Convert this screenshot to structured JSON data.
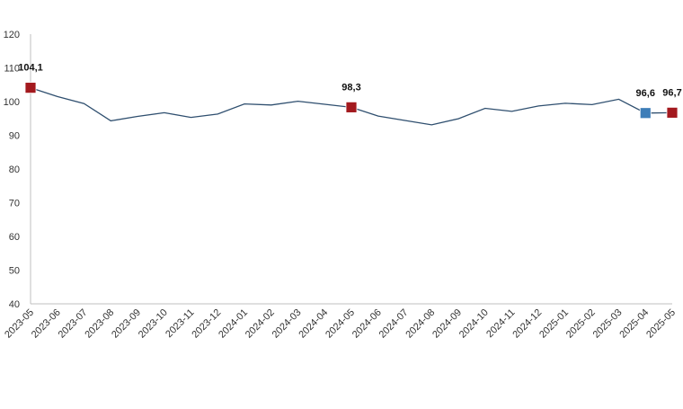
{
  "chart_data": {
    "type": "line",
    "title": "",
    "xlabel": "",
    "ylabel": "",
    "ylim": [
      40,
      120
    ],
    "yticks": [
      40,
      50,
      60,
      70,
      80,
      90,
      100,
      110,
      120
    ],
    "grid": false,
    "legend": "none",
    "categories": [
      "2023-05",
      "2023-06",
      "2023-07",
      "2023-08",
      "2023-09",
      "2023-10",
      "2023-11",
      "2023-12",
      "2024-01",
      "2024-02",
      "2024-03",
      "2024-04",
      "2024-05",
      "2024-06",
      "2024-07",
      "2024-08",
      "2024-09",
      "2024-10",
      "2024-11",
      "2024-12",
      "2025-01",
      "2025-02",
      "2025-03",
      "2025-04",
      "2025-05"
    ],
    "series": [
      {
        "values": [
          104.1,
          101.5,
          99.4,
          94.3,
          95.6,
          96.7,
          95.3,
          96.3,
          99.3,
          99.0,
          100.1,
          99.2,
          98.3,
          95.7,
          94.4,
          93.1,
          94.9,
          98.0,
          97.1,
          98.7,
          99.5,
          99.1,
          100.7,
          96.6,
          96.7
        ],
        "color": "#2f4f6f"
      }
    ],
    "markers": [
      {
        "index": 0,
        "label": "104,1",
        "color": "#a3191e"
      },
      {
        "index": 12,
        "label": "98,3",
        "color": "#a3191e"
      },
      {
        "index": 23,
        "label": "96,6",
        "color": "#3d7db8"
      },
      {
        "index": 24,
        "label": "96,7",
        "color": "#a3191e"
      }
    ],
    "axis_color": "#bfbfbf"
  }
}
